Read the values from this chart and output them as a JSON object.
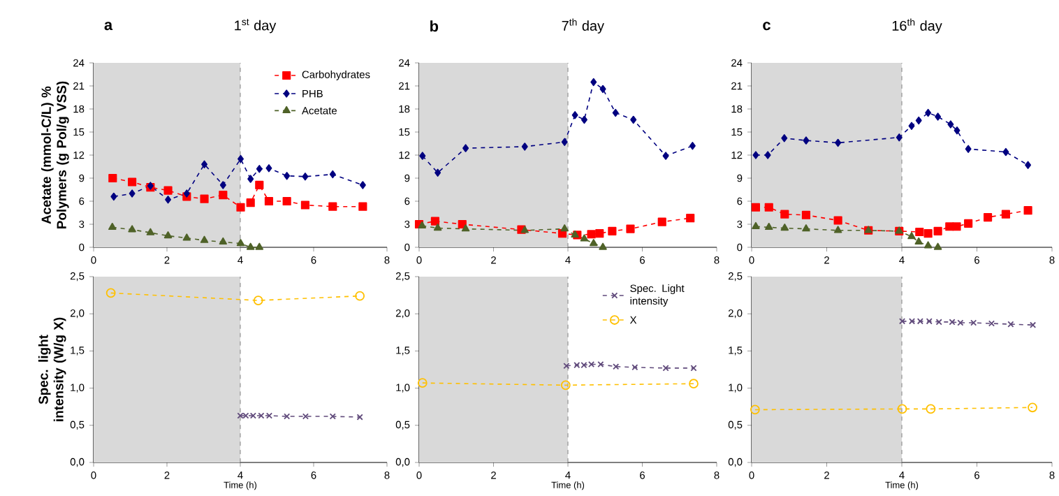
{
  "chart_data": [
    {
      "type": "line",
      "title": "a",
      "subtitle": "1$^{st}$ day",
      "ylabel": "Acetate (mmol-C/L) % Polymers (g Pol/g VSS)",
      "xlim": [
        0,
        8
      ],
      "ylim": [
        0,
        24
      ],
      "xticks": [
        0,
        2,
        4,
        6,
        8
      ],
      "yticks": [
        0,
        3,
        6,
        9,
        12,
        15,
        18,
        21,
        24
      ],
      "line_style": "dashed",
      "legend": "top right",
      "bands": [
        {
          "axis": "x",
          "from": 0,
          "to": 4,
          "color": "#d9d9d9"
        }
      ],
      "ref_lines": [
        {
          "axis": "x",
          "value": 4,
          "line_style": "dashed",
          "color": "#808080"
        }
      ],
      "series": [
        {
          "name": "Carbohydrates",
          "color": "#ff0000",
          "marker": "square",
          "x": [
            0.52,
            1.05,
            1.55,
            2.03,
            2.54,
            3.02,
            3.53,
            4.01,
            4.28,
            4.52,
            4.78,
            5.27,
            5.77,
            6.52,
            7.34
          ],
          "values": [
            9.0,
            8.5,
            7.8,
            7.4,
            6.6,
            6.3,
            6.8,
            5.2,
            5.8,
            8.1,
            6.0,
            6.0,
            5.5,
            5.3,
            5.3
          ]
        },
        {
          "name": "PHB",
          "color": "#000080",
          "marker": "diamond",
          "x": [
            0.55,
            1.05,
            1.55,
            2.03,
            2.54,
            3.02,
            3.53,
            4.01,
            4.28,
            4.52,
            4.78,
            5.27,
            5.77,
            6.52,
            7.34
          ],
          "values": [
            6.6,
            7.0,
            8.0,
            6.2,
            7.0,
            10.8,
            8.1,
            11.5,
            8.9,
            10.2,
            10.3,
            9.3,
            9.2,
            9.5,
            8.1
          ]
        },
        {
          "name": "Acetate",
          "color": "#4f6228",
          "marker": "triangle",
          "x": [
            0.51,
            1.05,
            1.55,
            2.03,
            2.54,
            3.02,
            3.53,
            4.01,
            4.28,
            4.52
          ],
          "values": [
            2.6,
            2.3,
            1.9,
            1.5,
            1.2,
            0.9,
            0.7,
            0.5,
            0,
            0
          ]
        }
      ]
    },
    {
      "type": "line",
      "title": "b",
      "subtitle": "7$^{th}$ day",
      "xlim": [
        0,
        8
      ],
      "ylim": [
        0,
        24
      ],
      "xticks": [
        0,
        2,
        4,
        6,
        8
      ],
      "yticks": [
        0,
        3,
        6,
        9,
        12,
        15,
        18,
        21,
        24
      ],
      "line_style": "dashed",
      "bands": [
        {
          "axis": "x",
          "from": 0,
          "to": 4,
          "color": "#d9d9d9"
        }
      ],
      "ref_lines": [
        {
          "axis": "x",
          "value": 4,
          "line_style": "dashed",
          "color": "#808080"
        }
      ],
      "series": [
        {
          "color": "#000080",
          "marker": "diamond",
          "x": [
            0.09,
            0.5,
            1.25,
            2.84,
            3.91,
            4.19,
            4.44,
            4.69,
            4.94,
            5.28,
            5.76,
            6.63,
            7.35
          ],
          "values": [
            11.9,
            9.7,
            12.9,
            13.1,
            13.7,
            17.2,
            16.6,
            21.5,
            20.6,
            17.5,
            16.6,
            11.9,
            13.2
          ]
        },
        {
          "color": "#ff0000",
          "marker": "square",
          "x": [
            0.0,
            0.43,
            1.16,
            2.75,
            3.85,
            4.25,
            4.63,
            4.85,
            5.19,
            5.68,
            6.53,
            7.29
          ],
          "values": [
            3.0,
            3.4,
            3.0,
            2.3,
            1.8,
            1.6,
            1.7,
            1.8,
            2.1,
            2.4,
            3.3,
            3.8
          ]
        },
        {
          "color": "#4f6228",
          "marker": "triangle",
          "x": [
            0.08,
            0.5,
            1.25,
            2.84,
            3.91,
            4.19,
            4.44,
            4.69,
            4.94
          ],
          "values": [
            2.8,
            2.5,
            2.4,
            2.2,
            2.4,
            1.6,
            1.1,
            0.5,
            0
          ]
        }
      ]
    },
    {
      "type": "line",
      "title": "c",
      "subtitle": "16$^{th}$ day",
      "xlim": [
        0,
        8
      ],
      "ylim": [
        0,
        24
      ],
      "xticks": [
        0,
        2,
        4,
        6,
        8
      ],
      "yticks": [
        0,
        3,
        6,
        9,
        12,
        15,
        18,
        21,
        24
      ],
      "line_style": "dashed",
      "bands": [
        {
          "axis": "x",
          "from": 0,
          "to": 4,
          "color": "#d9d9d9"
        }
      ],
      "ref_lines": [
        {
          "axis": "x",
          "value": 4,
          "line_style": "dashed",
          "color": "#808080"
        }
      ],
      "series": [
        {
          "color": "#000080",
          "marker": "diamond",
          "x": [
            0.11,
            0.43,
            0.87,
            1.45,
            2.3,
            3.93,
            4.26,
            4.45,
            4.7,
            4.96,
            5.3,
            5.47,
            5.77,
            6.77,
            7.36
          ],
          "values": [
            12.0,
            12.0,
            14.2,
            13.9,
            13.6,
            14.3,
            15.8,
            16.5,
            17.5,
            17.0,
            16.0,
            15.2,
            12.8,
            12.4,
            10.7
          ]
        },
        {
          "color": "#ff0000",
          "marker": "square",
          "x": [
            0.11,
            0.46,
            0.88,
            1.45,
            2.3,
            3.11,
            3.93,
            4.47,
            4.7,
            4.96,
            5.27,
            5.46,
            5.77,
            6.29,
            6.77,
            7.36
          ],
          "values": [
            5.2,
            5.2,
            4.3,
            4.2,
            3.5,
            2.2,
            2.1,
            2.0,
            1.8,
            2.1,
            2.7,
            2.7,
            3.1,
            3.9,
            4.3,
            4.8
          ]
        },
        {
          "color": "#4f6228",
          "marker": "triangle",
          "x": [
            0.11,
            0.46,
            0.88,
            1.45,
            2.3,
            3.11,
            3.93,
            4.26,
            4.45,
            4.7,
            4.96
          ],
          "values": [
            2.7,
            2.6,
            2.5,
            2.4,
            2.2,
            2.2,
            2.1,
            1.4,
            0.7,
            0.2,
            0
          ]
        }
      ]
    },
    {
      "type": "line",
      "xlabel": "Time (h)",
      "ylabel": "Spec. light intensity (W/g X)",
      "xlim": [
        0,
        8
      ],
      "ylim": [
        0,
        2.5
      ],
      "xticks": [
        0,
        2,
        4,
        6,
        8
      ],
      "yticks": [
        {
          "value": 0,
          "label": "0,0"
        },
        {
          "value": 0.5,
          "label": "0,5"
        },
        {
          "value": 1,
          "label": "1,0"
        },
        {
          "value": 1.5,
          "label": "1,5"
        },
        {
          "value": 2,
          "label": "2,0"
        },
        {
          "value": 2.5,
          "label": "2,5"
        }
      ],
      "line_style": "dashed",
      "bands": [
        {
          "axis": "x",
          "from": 0,
          "to": 4,
          "color": "#d9d9d9"
        }
      ],
      "ref_lines": [
        {
          "axis": "x",
          "value": 4,
          "line_style": "dashed",
          "color": "#808080"
        }
      ],
      "series": [
        {
          "color": "#ffc000",
          "marker": "circle",
          "x": [
            0.47,
            4.49,
            7.26
          ],
          "values": [
            2.28,
            2.18,
            2.24
          ]
        },
        {
          "color": "#604a7b",
          "marker": "cross",
          "x": [
            4.0,
            4.15,
            4.35,
            4.57,
            4.79,
            5.27,
            5.78,
            6.52,
            7.26
          ],
          "values": [
            0.63,
            0.63,
            0.63,
            0.63,
            0.63,
            0.62,
            0.62,
            0.62,
            0.61
          ]
        }
      ]
    },
    {
      "type": "line",
      "xlabel": "Time (h)",
      "xlim": [
        0,
        8
      ],
      "ylim": [
        0,
        2.5
      ],
      "xticks": [
        0,
        2,
        4,
        6,
        8
      ],
      "yticks": [
        {
          "value": 0,
          "label": "0,0"
        },
        {
          "value": 0.5,
          "label": "0,5"
        },
        {
          "value": 1,
          "label": "1,0"
        },
        {
          "value": 1.5,
          "label": "1,5"
        },
        {
          "value": 2,
          "label": "2,0"
        },
        {
          "value": 2.5,
          "label": "2,5"
        }
      ],
      "line_style": "dashed",
      "legend": "top right",
      "bands": [
        {
          "axis": "x",
          "from": 0,
          "to": 4,
          "color": "#d9d9d9"
        }
      ],
      "ref_lines": [
        {
          "axis": "x",
          "value": 4,
          "line_style": "dashed",
          "color": "#808080"
        }
      ],
      "series": [
        {
          "name": "Spec. Light intensity",
          "color": "#604a7b",
          "marker": "cross",
          "x": [
            3.96,
            4.24,
            4.43,
            4.63,
            4.88,
            5.29,
            5.8,
            6.63,
            7.38
          ],
          "values": [
            1.3,
            1.31,
            1.31,
            1.32,
            1.32,
            1.29,
            1.28,
            1.27,
            1.27
          ]
        },
        {
          "name": "X",
          "color": "#ffc000",
          "marker": "circle",
          "x": [
            0.09,
            3.94,
            7.38
          ],
          "values": [
            1.07,
            1.04,
            1.06
          ]
        }
      ]
    },
    {
      "type": "line",
      "xlabel": "Time (h)",
      "xlim": [
        0,
        8
      ],
      "ylim": [
        0,
        2.5
      ],
      "xticks": [
        0,
        2,
        4,
        6,
        8
      ],
      "yticks": [
        {
          "value": 0,
          "label": "0,0"
        },
        {
          "value": 0.5,
          "label": "0,5"
        },
        {
          "value": 1,
          "label": "1,0"
        },
        {
          "value": 1.5,
          "label": "1,5"
        },
        {
          "value": 2,
          "label": "2,0"
        },
        {
          "value": 2.5,
          "label": "2,5"
        }
      ],
      "line_style": "dashed",
      "bands": [
        {
          "axis": "x",
          "from": 0,
          "to": 4,
          "color": "#d9d9d9"
        }
      ],
      "ref_lines": [
        {
          "axis": "x",
          "value": 4,
          "line_style": "dashed",
          "color": "#808080"
        }
      ],
      "series": [
        {
          "color": "#604a7b",
          "marker": "cross",
          "x": [
            4.01,
            4.27,
            4.49,
            4.73,
            4.99,
            5.34,
            5.56,
            5.91,
            6.39,
            6.9,
            7.49
          ],
          "values": [
            1.9,
            1.9,
            1.9,
            1.9,
            1.89,
            1.89,
            1.88,
            1.88,
            1.87,
            1.86,
            1.85
          ]
        },
        {
          "color": "#ffc000",
          "marker": "circle",
          "x": [
            0.09,
            4.01,
            4.77,
            7.48
          ],
          "values": [
            0.71,
            0.72,
            0.72,
            0.74
          ]
        }
      ]
    }
  ]
}
